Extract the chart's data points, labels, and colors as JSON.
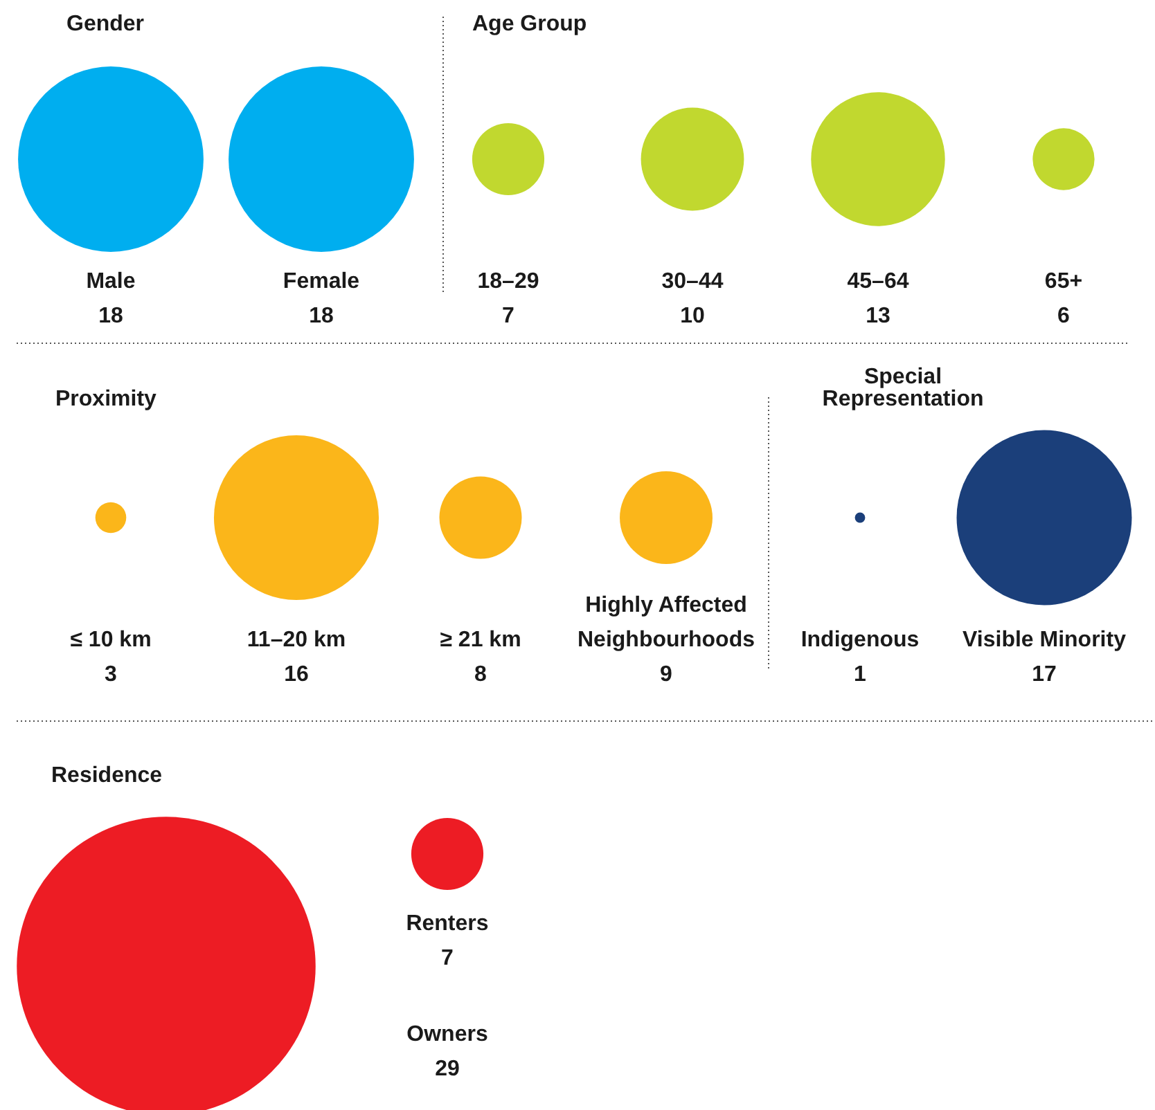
{
  "chart_data": [
    {
      "type": "other",
      "title": "Gender",
      "categories": [
        "Male",
        "Female"
      ],
      "values": [
        18,
        18
      ],
      "color": "#00aeef",
      "data_labels": true
    },
    {
      "type": "other",
      "title": "Age Group",
      "categories": [
        "18–29",
        "30–44",
        "45–64",
        "65+"
      ],
      "values": [
        7,
        10,
        13,
        6
      ],
      "color": "#c1d82f",
      "data_labels": true
    },
    {
      "type": "other",
      "title": "Proximity",
      "categories": [
        "≤ 10 km",
        "11–20 km",
        "≥ 21 km",
        "Highly Affected Neighbourhoods"
      ],
      "values": [
        3,
        16,
        8,
        9
      ],
      "color": "#fbb61a",
      "data_labels": true
    },
    {
      "type": "other",
      "title": "Special Representation",
      "categories": [
        "Indigenous",
        "Visible Minority"
      ],
      "values": [
        1,
        17
      ],
      "color": "#1b3f7a",
      "data_labels": true
    },
    {
      "type": "other",
      "title": "Residence",
      "categories": [
        "Renters",
        "Owners"
      ],
      "values": [
        7,
        29
      ],
      "color": "#ed1c24",
      "data_labels": true
    }
  ]
}
